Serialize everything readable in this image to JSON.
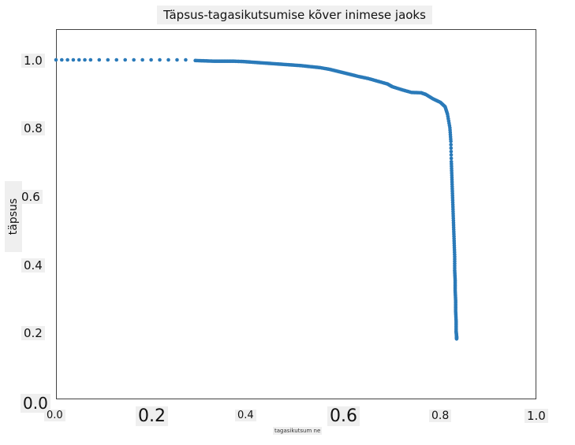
{
  "chart_data": {
    "type": "scatter",
    "title": "Täpsus-tagasikutsumise kõver inimese jaoks",
    "xlabel": "tagasikutsum ne",
    "ylabel": "täpsus",
    "xlim": [
      0.0,
      1.0
    ],
    "ylim": [
      0.0,
      1.1
    ],
    "xticks": [
      "0.0",
      "0.2",
      "0.4",
      "0.6",
      "0.8",
      "1.0"
    ],
    "yticks": [
      "0.0",
      "0.2",
      "0.4",
      "0.6",
      "0.8",
      "1.0"
    ],
    "grid": false,
    "color": "#2a7ab9",
    "series": [
      {
        "x": [
          0.0,
          0.012,
          0.024,
          0.036,
          0.048,
          0.06,
          0.072,
          0.09,
          0.108,
          0.126,
          0.144,
          0.162,
          0.18,
          0.198,
          0.216,
          0.234,
          0.252,
          0.27,
          0.29,
          0.31,
          0.33,
          0.35,
          0.37,
          0.39,
          0.41,
          0.43,
          0.45,
          0.47,
          0.49,
          0.51,
          0.53,
          0.55,
          0.57,
          0.59,
          0.61,
          0.63,
          0.65,
          0.67,
          0.69,
          0.7,
          0.72,
          0.74,
          0.76,
          0.77,
          0.785,
          0.8,
          0.81,
          0.815,
          0.82,
          0.822,
          0.823,
          0.824,
          0.825,
          0.826,
          0.827,
          0.828,
          0.829,
          0.83,
          0.83,
          0.831,
          0.831,
          0.832,
          0.832,
          0.833,
          0.833,
          0.834,
          0.834
        ],
        "y": [
          1.0,
          1.0,
          1.0,
          1.0,
          1.0,
          1.0,
          1.0,
          1.0,
          1.0,
          1.0,
          1.0,
          1.0,
          1.0,
          1.0,
          1.0,
          1.0,
          1.0,
          1.0,
          0.998,
          0.997,
          0.996,
          0.996,
          0.996,
          0.995,
          0.993,
          0.991,
          0.989,
          0.987,
          0.985,
          0.983,
          0.98,
          0.977,
          0.972,
          0.965,
          0.958,
          0.951,
          0.945,
          0.937,
          0.929,
          0.921,
          0.912,
          0.904,
          0.903,
          0.898,
          0.885,
          0.875,
          0.862,
          0.84,
          0.8,
          0.76,
          0.7,
          0.66,
          0.62,
          0.58,
          0.54,
          0.5,
          0.46,
          0.42,
          0.38,
          0.35,
          0.32,
          0.29,
          0.26,
          0.23,
          0.2,
          0.185,
          0.178
        ]
      }
    ]
  }
}
